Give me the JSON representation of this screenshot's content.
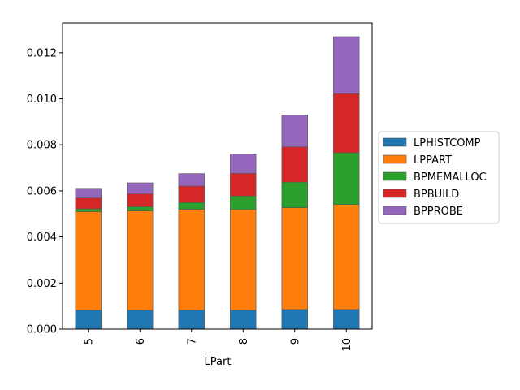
{
  "chart_data": {
    "type": "bar",
    "stacked": true,
    "xlabel": "LPart",
    "ylabel": "",
    "categories": [
      "5",
      "6",
      "7",
      "8",
      "9",
      "10"
    ],
    "ylim": [
      0,
      0.0133
    ],
    "yticks": [
      "0.000",
      "0.002",
      "0.004",
      "0.006",
      "0.008",
      "0.010",
      "0.012"
    ],
    "grid": false,
    "legend_position": "right",
    "series": [
      {
        "name": "LPHISTCOMP",
        "color": "#1f77b4",
        "values": [
          0.00082,
          0.00082,
          0.00082,
          0.00082,
          0.00085,
          0.00085
        ]
      },
      {
        "name": "LPPART",
        "color": "#ff7f0e",
        "values": [
          0.00428,
          0.00431,
          0.00438,
          0.00437,
          0.00442,
          0.00456
        ]
      },
      {
        "name": "BPMEMALLOC",
        "color": "#2ca02c",
        "values": [
          0.00012,
          0.00018,
          0.00029,
          0.00059,
          0.00111,
          0.00225
        ]
      },
      {
        "name": "BPBUILD",
        "color": "#d62728",
        "values": [
          0.00047,
          0.00056,
          0.00072,
          0.00098,
          0.00153,
          0.00256
        ]
      },
      {
        "name": "BPPROBE",
        "color": "#9467bd",
        "values": [
          0.00042,
          0.00048,
          0.00054,
          0.00084,
          0.00138,
          0.00248
        ]
      }
    ]
  }
}
